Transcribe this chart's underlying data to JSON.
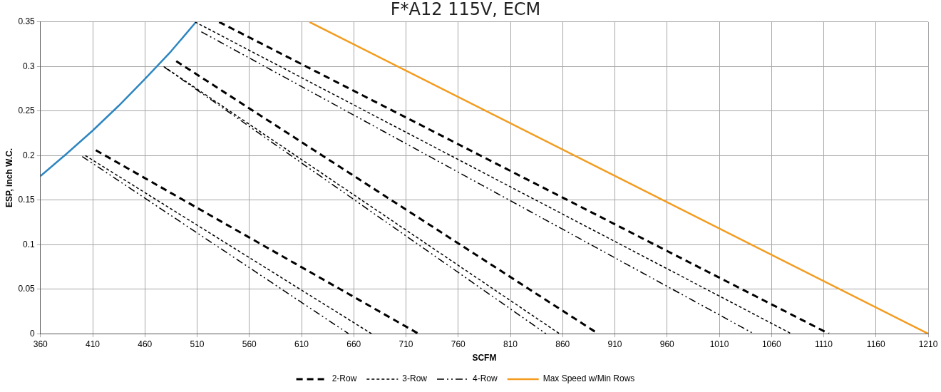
{
  "chart_data": {
    "type": "line",
    "title": "F*A12 115V, ECM",
    "xlabel": "SCFM",
    "ylabel": "ESP, inch W.C.",
    "xlim": [
      360,
      1210
    ],
    "xticks": [
      360,
      410,
      460,
      510,
      560,
      610,
      660,
      710,
      760,
      810,
      860,
      910,
      960,
      1010,
      1060,
      1110,
      1160,
      1210
    ],
    "ylim": [
      0,
      0.35
    ],
    "yticks": [
      0,
      0.05,
      0.1,
      0.15,
      0.2,
      0.25,
      0.3,
      0.35
    ],
    "grid": true,
    "legend": "bottom",
    "marker": "none",
    "series": [
      {
        "name": "2-Row",
        "color": "#000000",
        "line_style": "dashed",
        "x": [
          413,
          722,
          null,
          490,
          894,
          null,
          531,
          1115
        ],
        "values": [
          0.206,
          0,
          null,
          0.306,
          0,
          null,
          0.35,
          0
        ]
      },
      {
        "name": "3-Row",
        "color": "#000000",
        "line_style": "dotted",
        "x": [
          403,
          677,
          null,
          478,
          857,
          null,
          508,
          1079
        ],
        "values": [
          0.2,
          0,
          null,
          0.3,
          0,
          null,
          0.35,
          0
        ]
      },
      {
        "name": "4-Row",
        "color": "#000000",
        "line_style": "dashdot",
        "x": [
          400,
          655,
          null,
          479,
          844,
          null,
          514,
          1043
        ],
        "values": [
          0.199,
          0,
          null,
          0.299,
          0,
          null,
          0.339,
          0
        ]
      },
      {
        "name": "Max Speed w/Min Rows",
        "color": "#f39c1f",
        "line_style": "solid",
        "x": [
          617.5,
          1210
        ],
        "values": [
          0.35,
          0
        ]
      },
      {
        "color": "#2e86c1",
        "line_style": "solid",
        "x": [
          360,
          385,
          410,
          435,
          460,
          485,
          509
        ],
        "values": [
          0.177,
          0.202,
          0.228,
          0.256,
          0.286,
          0.317,
          0.35
        ]
      }
    ]
  }
}
